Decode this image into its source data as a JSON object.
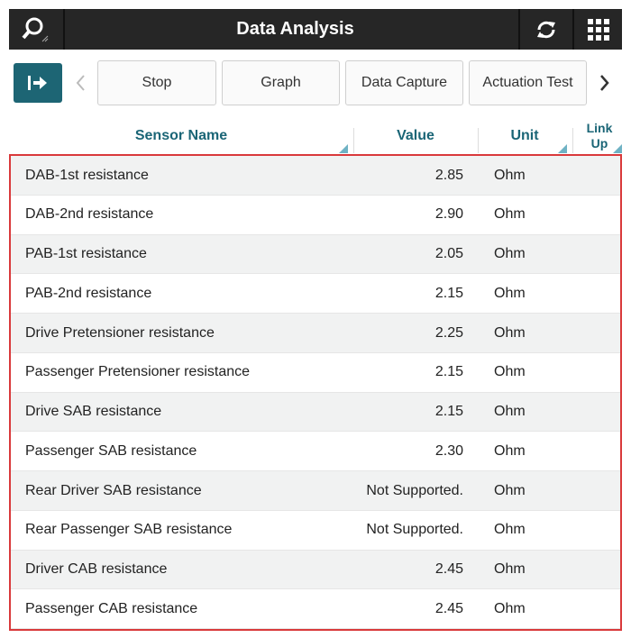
{
  "header": {
    "title": "Data Analysis"
  },
  "toolbar": {
    "buttons": [
      "Stop",
      "Graph",
      "Data Capture",
      "Actuation Test"
    ]
  },
  "table": {
    "columns": [
      "Sensor Name",
      "Value",
      "Unit",
      "Link Up"
    ],
    "rows": [
      [
        "DAB-1st resistance",
        "2.85",
        "Ohm"
      ],
      [
        "DAB-2nd resistance",
        "2.90",
        "Ohm"
      ],
      [
        "PAB-1st resistance",
        "2.05",
        "Ohm"
      ],
      [
        "PAB-2nd resistance",
        "2.15",
        "Ohm"
      ],
      [
        "Drive Pretensioner resistance",
        "2.25",
        "Ohm"
      ],
      [
        "Passenger Pretensioner resistance",
        "2.15",
        "Ohm"
      ],
      [
        "Drive SAB resistance",
        "2.15",
        "Ohm"
      ],
      [
        "Passenger SAB resistance",
        "2.30",
        "Ohm"
      ],
      [
        "Rear Driver SAB resistance",
        "Not Supported.",
        "Ohm"
      ],
      [
        "Rear Passenger SAB resistance",
        "Not Supported.",
        "Ohm"
      ],
      [
        "Driver CAB resistance",
        "2.45",
        "Ohm"
      ],
      [
        "Passenger CAB resistance",
        "2.45",
        "Ohm"
      ]
    ]
  }
}
